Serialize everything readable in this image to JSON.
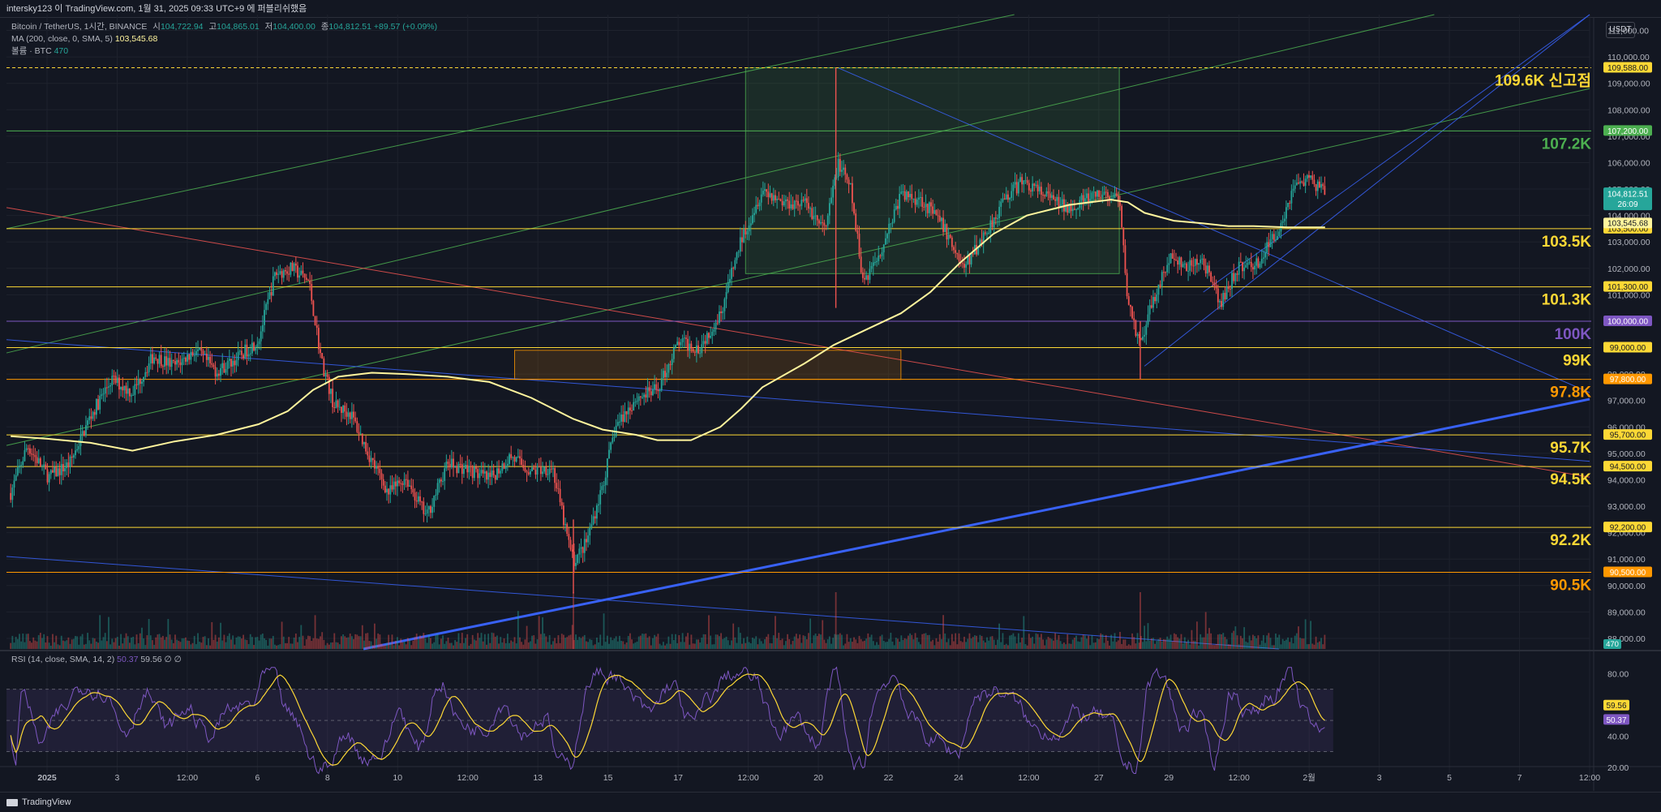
{
  "header": {
    "title_line": "intersky123 이 TradingView.com, 1월 31, 2025 09:33 UTC+9 에 퍼블리쉬했음"
  },
  "legend": {
    "symbol": "Bitcoin / TetherUS, 1시간, BINANCE",
    "open_label": "시",
    "open_value": "104,722.94",
    "high_label": "고",
    "high_value": "104,865.01",
    "low_label": "저",
    "low_value": "104,400.00",
    "close_label": "종",
    "close_value": "104,812.51",
    "change": "+89.57 (+0.09%)",
    "ma_label": "MA (200, close, 0, SMA, 5)",
    "ma_value": "103,545.68",
    "volume_label": "볼륨 · BTC",
    "volume_value": "470"
  },
  "rsi_legend": {
    "label": "RSI (14, close, SMA, 14, 2)",
    "rsi_value": "50.37",
    "sma_value": "59.56",
    "extra": "∅ ∅"
  },
  "footer": {
    "brand": "TradingView"
  },
  "currency": "USDT",
  "colors": {
    "background": "#131722",
    "grid": "#1e222d",
    "up": "#26a69a",
    "down": "#ef5350",
    "ma": "#fff59d",
    "level_yellow": "#f7e24b",
    "level_orange": "#ff9800",
    "level_green": "#4caf50",
    "level_purple": "#7e57c2",
    "channel_blue": "#3861f6",
    "rsi_line": "#7e57c2",
    "rsi_sma": "#fdd835"
  },
  "chart_data": [
    {
      "type": "candlestick",
      "subject": "BTC/USDT 1H",
      "y_axis_ticks": [
        "111,000.00",
        "110,000.00",
        "109,000.00",
        "108,000.00",
        "107,000.00",
        "106,000.00",
        "105,000.00",
        "104,000.00",
        "103,000.00",
        "102,000.00",
        "101,000.00",
        "100,000.00",
        "99,000.00",
        "98,000.00",
        "97,000.00",
        "96,000.00",
        "95,000.00",
        "94,000.00",
        "93,000.00",
        "92,000.00",
        "91,000.00",
        "90,000.00",
        "89,000.00",
        "88,000.00"
      ],
      "ylim": [
        87600,
        111600
      ],
      "x_axis_ticks": [
        "2025",
        "3",
        "12:00",
        "6",
        "8",
        "10",
        "12:00",
        "13",
        "15",
        "17",
        "12:00",
        "20",
        "22",
        "24",
        "12:00",
        "27",
        "29",
        "12:00",
        "2월",
        "3",
        "5",
        "7",
        "12:00"
      ],
      "x_range_days": [
        0.5,
        38.2
      ],
      "last_price": "104,812.51",
      "countdown": "26:09",
      "ma_price_label": "103,545.68",
      "volume_price_label": "470",
      "levels": [
        {
          "price": 109588,
          "axis_label": "109,588.00",
          "text": "109.6K 신고점",
          "color": "#fdd835",
          "style": "dashed"
        },
        {
          "price": 107200,
          "axis_label": "107,200.00",
          "text": "107.2K",
          "color": "#4caf50",
          "style": "solid"
        },
        {
          "price": 103500,
          "axis_label": "103,500.00",
          "text": "103.5K",
          "color": "#fdd835",
          "style": "solid"
        },
        {
          "price": 101300,
          "axis_label": "101,300.00",
          "text": "101.3K",
          "color": "#fdd835",
          "style": "solid"
        },
        {
          "price": 100000,
          "axis_label": "100,000.00",
          "text": "100K",
          "color": "#7e57c2",
          "style": "solid"
        },
        {
          "price": 99000,
          "axis_label": "99,000.00",
          "text": "99K",
          "color": "#fdd835",
          "style": "solid"
        },
        {
          "price": 97800,
          "axis_label": "97,800.00",
          "text": "97.8K",
          "color": "#ff9800",
          "style": "solid"
        },
        {
          "price": 95700,
          "axis_label": "95,700.00",
          "text": "95.7K",
          "color": "#fdd835",
          "style": "solid"
        },
        {
          "price": 94500,
          "axis_label": "94,500.00",
          "text": "94.5K",
          "color": "#fdd835",
          "style": "solid"
        },
        {
          "price": 92200,
          "axis_label": "92,200.00",
          "text": "92.2K",
          "color": "#fdd835",
          "style": "solid"
        },
        {
          "price": 90500,
          "axis_label": "90,500.00",
          "text": "90.5K",
          "color": "#ff9800",
          "style": "solid"
        }
      ],
      "price_path": [
        [
          0.6,
          93500
        ],
        [
          1.0,
          95300
        ],
        [
          1.5,
          94100
        ],
        [
          2.0,
          94600
        ],
        [
          2.5,
          96400
        ],
        [
          3.0,
          97800
        ],
        [
          3.5,
          97300
        ],
        [
          4.0,
          98700
        ],
        [
          4.5,
          98300
        ],
        [
          5.0,
          98900
        ],
        [
          5.5,
          98100
        ],
        [
          6.0,
          98600
        ],
        [
          6.5,
          99300
        ],
        [
          6.9,
          101800
        ],
        [
          7.3,
          102000
        ],
        [
          7.7,
          101500
        ],
        [
          8.0,
          98500
        ],
        [
          8.3,
          96800
        ],
        [
          8.7,
          96500
        ],
        [
          9.2,
          94700
        ],
        [
          9.6,
          93500
        ],
        [
          10.0,
          94100
        ],
        [
          10.5,
          92600
        ],
        [
          11.0,
          94600
        ],
        [
          11.5,
          94400
        ],
        [
          12.0,
          94000
        ],
        [
          12.5,
          94900
        ],
        [
          13.0,
          94300
        ],
        [
          13.5,
          94500
        ],
        [
          13.8,
          92200
        ],
        [
          14.0,
          90900
        ],
        [
          14.3,
          91600
        ],
        [
          14.7,
          93800
        ],
        [
          15.0,
          96000
        ],
        [
          15.5,
          97100
        ],
        [
          16.0,
          97400
        ],
        [
          16.5,
          99200
        ],
        [
          17.0,
          99000
        ],
        [
          17.5,
          100300
        ],
        [
          18.0,
          103100
        ],
        [
          18.5,
          105000
        ],
        [
          19.0,
          104500
        ],
        [
          19.5,
          104500
        ],
        [
          20.0,
          103400
        ],
        [
          20.3,
          106000
        ],
        [
          20.6,
          105000
        ],
        [
          20.9,
          101500
        ],
        [
          21.3,
          102600
        ],
        [
          21.8,
          104800
        ],
        [
          22.3,
          104600
        ],
        [
          22.8,
          103600
        ],
        [
          23.3,
          102000
        ],
        [
          23.8,
          103300
        ],
        [
          24.3,
          104700
        ],
        [
          24.7,
          105300
        ],
        [
          25.2,
          104800
        ],
        [
          25.7,
          104300
        ],
        [
          26.2,
          104600
        ],
        [
          26.7,
          104800
        ],
        [
          27.0,
          104500
        ],
        [
          27.2,
          100800
        ],
        [
          27.5,
          99000
        ],
        [
          27.8,
          100800
        ],
        [
          28.2,
          102400
        ],
        [
          28.6,
          102000
        ],
        [
          29.0,
          102300
        ],
        [
          29.4,
          100600
        ],
        [
          29.8,
          102000
        ],
        [
          30.3,
          102200
        ],
        [
          30.8,
          103500
        ],
        [
          31.2,
          105300
        ],
        [
          31.6,
          105300
        ],
        [
          31.9,
          104800
        ]
      ],
      "ma200_path": [
        [
          0.6,
          95650
        ],
        [
          1.5,
          95550
        ],
        [
          2.5,
          95400
        ],
        [
          3.5,
          95100
        ],
        [
          4.5,
          95450
        ],
        [
          5.5,
          95700
        ],
        [
          6.5,
          96100
        ],
        [
          7.2,
          96600
        ],
        [
          7.8,
          97400
        ],
        [
          8.4,
          97900
        ],
        [
          9.2,
          98050
        ],
        [
          10.0,
          98000
        ],
        [
          11.0,
          97900
        ],
        [
          12.0,
          97700
        ],
        [
          13.0,
          97100
        ],
        [
          14.0,
          96300
        ],
        [
          14.7,
          95900
        ],
        [
          15.5,
          95700
        ],
        [
          16.0,
          95500
        ],
        [
          16.8,
          95500
        ],
        [
          17.5,
          96000
        ],
        [
          18.0,
          96700
        ],
        [
          18.5,
          97500
        ],
        [
          19.5,
          98400
        ],
        [
          20.2,
          99100
        ],
        [
          21.0,
          99700
        ],
        [
          21.8,
          100300
        ],
        [
          22.5,
          101100
        ],
        [
          23.2,
          102200
        ],
        [
          24.0,
          103300
        ],
        [
          24.8,
          104000
        ],
        [
          25.8,
          104400
        ],
        [
          26.8,
          104600
        ],
        [
          27.2,
          104500
        ],
        [
          27.6,
          104100
        ],
        [
          28.3,
          103800
        ],
        [
          29.0,
          103700
        ],
        [
          29.6,
          103600
        ],
        [
          30.2,
          103600
        ],
        [
          31.0,
          103550
        ],
        [
          31.9,
          103550
        ]
      ],
      "spikes": [
        {
          "day": 20.25,
          "high": 109588,
          "low": 100500
        },
        {
          "day": 14.0,
          "high": 92500,
          "low": 89700
        },
        {
          "day": 27.5,
          "high": 100000,
          "low": 97800
        }
      ],
      "drawings": [
        {
          "kind": "rect",
          "x": [
            18.1,
            27.0
          ],
          "y": [
            101800,
            109588
          ],
          "color": "#4caf50"
        },
        {
          "kind": "rect",
          "x": [
            12.6,
            21.8
          ],
          "y": [
            97800,
            98900
          ],
          "color": "#ff9800"
        },
        {
          "kind": "line",
          "from": [
            0.5,
            103500
          ],
          "to": [
            24.5,
            111600
          ],
          "color": "#4caf50"
        },
        {
          "kind": "line",
          "from": [
            0.5,
            98800
          ],
          "to": [
            34.5,
            111600
          ],
          "color": "#4caf50"
        },
        {
          "kind": "line",
          "from": [
            0.5,
            95300
          ],
          "to": [
            38.2,
            108800
          ],
          "color": "#4caf50"
        },
        {
          "kind": "line",
          "from": [
            0.5,
            104300
          ],
          "to": [
            38.2,
            94100
          ],
          "color": "#ef5350"
        },
        {
          "kind": "line",
          "from": [
            0.5,
            99300
          ],
          "to": [
            38.2,
            94700
          ],
          "color": "#3861f6"
        },
        {
          "kind": "line",
          "from": [
            0.5,
            91100
          ],
          "to": [
            30.8,
            87600
          ],
          "color": "#3861f6"
        },
        {
          "kind": "line",
          "from": [
            20.3,
            109588
          ],
          "to": [
            38.2,
            97300
          ],
          "color": "#3861f6"
        },
        {
          "kind": "line",
          "from": [
            27.6,
            98300
          ],
          "to": [
            38.2,
            111600
          ],
          "color": "#3861f6"
        },
        {
          "kind": "line",
          "from": [
            29.0,
            101100
          ],
          "to": [
            38.2,
            111600
          ],
          "color": "#3861f6"
        },
        {
          "kind": "line",
          "from": [
            9.0,
            87600
          ],
          "to": [
            38.2,
            97050
          ],
          "color": "#3861f6",
          "width": 3
        }
      ]
    },
    {
      "type": "line",
      "subject": "RSI (14)",
      "y_axis_ticks": [
        "80.00",
        "60.00",
        "40.00",
        "20.00"
      ],
      "ylim": [
        10,
        88
      ],
      "bands": [
        30,
        50,
        70
      ],
      "rsi_label": "50.37",
      "sma_label": "59.56"
    }
  ]
}
